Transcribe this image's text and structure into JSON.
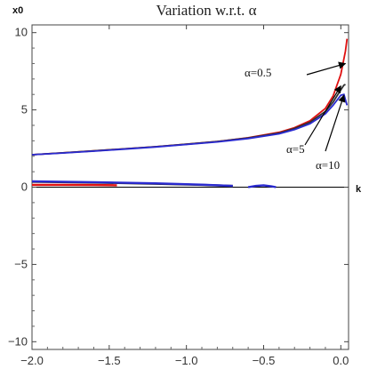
{
  "chart_data": {
    "type": "line",
    "title": "Variation w.r.t. α",
    "xlabel": "k",
    "ylabel": "x0",
    "xlim": [
      -2.0,
      0.05
    ],
    "ylim": [
      -10.5,
      10.5
    ],
    "x_ticks": [
      -2.0,
      -1.5,
      -1.0,
      -0.5,
      0.0
    ],
    "x_tick_labels": [
      "−2.0",
      "−1.5",
      "−1.0",
      "−0.5",
      "0.0"
    ],
    "y_ticks": [
      -10,
      -5,
      0,
      5,
      10
    ],
    "y_tick_labels": [
      "−10",
      "−5",
      "0",
      "5",
      "10"
    ],
    "grid": false,
    "series": [
      {
        "name": "α=0.5",
        "color": "#e01010",
        "x": [
          -2.0,
          -1.8,
          -1.6,
          -1.4,
          -1.2,
          -1.0,
          -0.8,
          -0.6,
          -0.4,
          -0.3,
          -0.2,
          -0.1,
          -0.05,
          0.0,
          0.03,
          0.04
        ],
        "y": [
          2.1,
          2.22,
          2.35,
          2.48,
          2.62,
          2.78,
          2.95,
          3.2,
          3.55,
          3.85,
          4.3,
          5.1,
          5.9,
          7.3,
          8.8,
          9.6
        ]
      },
      {
        "name": "α=5",
        "color": "#303030",
        "x": [
          -2.0,
          -1.8,
          -1.6,
          -1.4,
          -1.2,
          -1.0,
          -0.8,
          -0.6,
          -0.4,
          -0.3,
          -0.2,
          -0.1,
          -0.05,
          0.0,
          0.02,
          0.03
        ],
        "y": [
          2.1,
          2.22,
          2.35,
          2.48,
          2.62,
          2.78,
          2.95,
          3.18,
          3.5,
          3.8,
          4.2,
          4.9,
          5.5,
          6.3,
          6.6,
          6.65
        ]
      },
      {
        "name": "α=10",
        "color": "#2a2ad0",
        "x": [
          -2.0,
          -1.8,
          -1.6,
          -1.4,
          -1.2,
          -1.0,
          -0.8,
          -0.6,
          -0.4,
          -0.3,
          -0.2,
          -0.1,
          -0.05,
          0.0,
          0.02,
          0.04
        ],
        "y": [
          2.1,
          2.21,
          2.33,
          2.46,
          2.6,
          2.76,
          2.93,
          3.15,
          3.45,
          3.72,
          4.1,
          4.75,
          5.3,
          5.95,
          6.0,
          5.3
        ]
      }
    ],
    "lower_branches": [
      {
        "color": "#e01010",
        "x": [
          -2.0,
          -1.8,
          -1.6,
          -1.45
        ],
        "y": [
          0.15,
          0.15,
          0.14,
          0.12
        ]
      },
      {
        "color": "#303030",
        "x": [
          -2.0,
          -1.6,
          -1.2,
          -0.9,
          -0.7
        ],
        "y": [
          0.35,
          0.3,
          0.22,
          0.15,
          0.08
        ]
      },
      {
        "color": "#2a2ad0",
        "x": [
          -2.0,
          -1.6,
          -1.2,
          -0.9,
          -0.7
        ],
        "y": [
          0.38,
          0.32,
          0.25,
          0.16,
          0.08
        ]
      },
      {
        "color": "#2a2ad0",
        "x": [
          -0.6,
          -0.55,
          -0.5,
          -0.45,
          -0.42
        ],
        "y": [
          0.0,
          0.08,
          0.12,
          0.06,
          0.0
        ]
      }
    ],
    "annotations": [
      {
        "text": "α=0.5",
        "arrow_to": [
          0.03,
          8.0
        ]
      },
      {
        "text": "α=5",
        "arrow_to": [
          0.0,
          6.55
        ]
      },
      {
        "text": "α=10",
        "arrow_to": [
          0.02,
          5.95
        ]
      }
    ]
  }
}
